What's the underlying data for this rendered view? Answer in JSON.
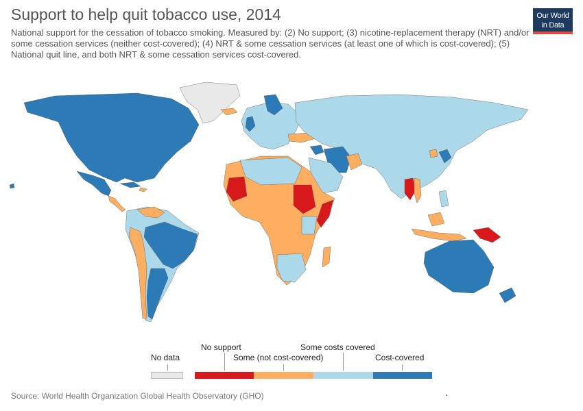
{
  "header": {
    "title": "Support to help quit tobacco use, 2014",
    "subtitle": "National support for the cessation of tobacco smoking. Measured by: (2) No support; (3) nicotine-replacement therapy (NRT) and/or some cessation services (neither cost-covered); (4) NRT & some cessation services (at least one of which is cost-covered); (5) National quit line, and both NRT & some cessation services cost-covered."
  },
  "logo": {
    "line1": "Our World",
    "line2": "in Data"
  },
  "legend": {
    "no_data": "No data",
    "no_support": "No support",
    "some_not_covered": "Some (not cost-covered)",
    "some_costs": "Some costs covered",
    "cost_covered": "Cost-covered",
    "colors": {
      "no_data": "#e9e9e9",
      "no_support": "#d7191c",
      "some_not_covered": "#fdae61",
      "some_costs": "#abd9e9",
      "cost_covered": "#2c7bb6"
    }
  },
  "footer": {
    "source": "Source: World Health Organization Global Health Observatory (GHO)"
  }
}
